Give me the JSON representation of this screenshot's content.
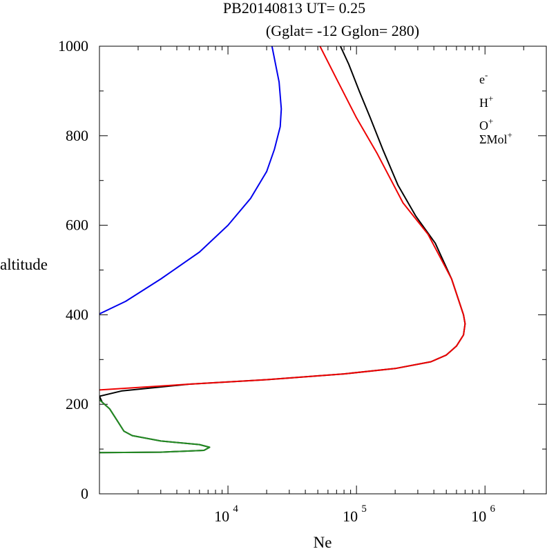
{
  "header": {
    "title": "PB20140813   UT=  0.25",
    "subtitle": "(Gglat= -12   Gglon=  280)"
  },
  "colors": {
    "electron": "#000000",
    "hplus": "#0000ee",
    "oplus": "#ee0000",
    "mol": "#228b22"
  },
  "chart_data": {
    "type": "line",
    "title": "PB20140813   UT=  0.25",
    "subtitle": "(Gglat= -12   Gglon=  280)",
    "xlabel": "Ne",
    "ylabel": "altitude",
    "xscale": "log",
    "xlim": [
      1000,
      3000000
    ],
    "ylim": [
      0,
      1000
    ],
    "y_ticks": [
      0,
      200,
      400,
      600,
      800,
      1000
    ],
    "x_ticks": [
      {
        "base": "10",
        "exp": "4",
        "value": 10000
      },
      {
        "base": "10",
        "exp": "5",
        "value": 100000
      },
      {
        "base": "10",
        "exp": "6",
        "value": 1000000
      }
    ],
    "legend_position": "top-right",
    "legend": [
      {
        "base": "e",
        "sup": "-",
        "color": "#000000"
      },
      {
        "base": "H",
        "sup": "+",
        "color": "#0000ee"
      },
      {
        "base": "O",
        "sup": "+",
        "color": "#ee0000"
      },
      {
        "base": "ΣMol",
        "sup": "+",
        "color": "#228b22"
      }
    ],
    "series": [
      {
        "name": "e-",
        "color": "#000000",
        "points": [
          [
            75000,
            1000
          ],
          [
            87000,
            960
          ],
          [
            105000,
            900
          ],
          [
            128000,
            840
          ],
          [
            160000,
            770
          ],
          [
            210000,
            690
          ],
          [
            290000,
            620
          ],
          [
            410000,
            560
          ],
          [
            550000,
            480
          ],
          [
            680000,
            400
          ],
          [
            700000,
            380
          ],
          [
            680000,
            355
          ],
          [
            600000,
            330
          ],
          [
            500000,
            310
          ],
          [
            380000,
            295
          ],
          [
            200000,
            280
          ],
          [
            80000,
            268
          ],
          [
            20000,
            255
          ],
          [
            5000,
            245
          ],
          [
            1500,
            230
          ],
          [
            1000,
            218
          ],
          [
            1050,
            205
          ],
          [
            1200,
            190
          ],
          [
            1400,
            160
          ],
          [
            1550,
            140
          ],
          [
            1800,
            130
          ],
          [
            3000,
            118
          ],
          [
            6000,
            110
          ],
          [
            7200,
            104
          ],
          [
            6500,
            97
          ],
          [
            3000,
            93
          ],
          [
            1000,
            92
          ]
        ]
      },
      {
        "name": "H+",
        "color": "#0000ee",
        "points": [
          [
            22000,
            1000
          ],
          [
            25000,
            920
          ],
          [
            26000,
            860
          ],
          [
            25500,
            820
          ],
          [
            23000,
            770
          ],
          [
            20000,
            720
          ],
          [
            15000,
            660
          ],
          [
            10000,
            600
          ],
          [
            6000,
            540
          ],
          [
            3000,
            480
          ],
          [
            1600,
            430
          ],
          [
            1000,
            402
          ]
        ]
      },
      {
        "name": "O+",
        "color": "#ee0000",
        "points": [
          [
            52000,
            1000
          ],
          [
            72000,
            920
          ],
          [
            100000,
            840
          ],
          [
            145000,
            760
          ],
          [
            230000,
            650
          ],
          [
            360000,
            580
          ],
          [
            550000,
            480
          ],
          [
            680000,
            400
          ],
          [
            700000,
            380
          ],
          [
            680000,
            355
          ],
          [
            600000,
            330
          ],
          [
            500000,
            310
          ],
          [
            380000,
            295
          ],
          [
            200000,
            280
          ],
          [
            80000,
            268
          ],
          [
            20000,
            255
          ],
          [
            5000,
            245
          ],
          [
            1000,
            232
          ]
        ]
      },
      {
        "name": "ΣMol+",
        "color": "#228b22",
        "points": [
          [
            1000,
            210
          ],
          [
            1200,
            190
          ],
          [
            1400,
            160
          ],
          [
            1550,
            140
          ],
          [
            1800,
            130
          ],
          [
            3000,
            118
          ],
          [
            6000,
            110
          ],
          [
            7200,
            104
          ],
          [
            6500,
            97
          ],
          [
            3000,
            93
          ],
          [
            1000,
            92
          ]
        ]
      }
    ]
  }
}
